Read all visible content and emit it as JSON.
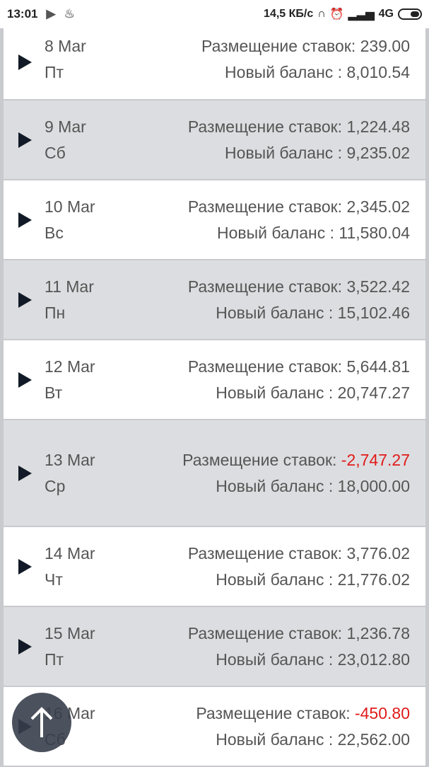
{
  "status_bar": {
    "time": "13:01",
    "speed": "14,5 КБ/с",
    "network": "4G"
  },
  "labels": {
    "bets": "Размещение ставок:",
    "balance": "Новый баланс :"
  },
  "rows": [
    {
      "date": "8 Mar",
      "day": "Пт",
      "bets": "239.00",
      "balance": "8,010.54",
      "negative": false
    },
    {
      "date": "9 Mar",
      "day": "Сб",
      "bets": "1,224.48",
      "balance": "9,235.02",
      "negative": false
    },
    {
      "date": "10 Mar",
      "day": "Вс",
      "bets": "2,345.02",
      "balance": "11,580.04",
      "negative": false
    },
    {
      "date": "11 Mar",
      "day": "Пн",
      "bets": "3,522.42",
      "balance": "15,102.46",
      "negative": false
    },
    {
      "date": "12 Mar",
      "day": "Вт",
      "bets": "5,644.81",
      "balance": "20,747.27",
      "negative": false
    },
    {
      "date": "13 Mar",
      "day": "Ср",
      "bets": "-2,747.27",
      "balance": "18,000.00",
      "negative": true
    },
    {
      "date": "14 Mar",
      "day": "Чт",
      "bets": "3,776.02",
      "balance": "21,776.02",
      "negative": false
    },
    {
      "date": "15 Mar",
      "day": "Пт",
      "bets": "1,236.78",
      "balance": "23,012.80",
      "negative": false
    },
    {
      "date": "16 Mar",
      "day": "Сб",
      "bets": "-450.80",
      "balance": "22,562.00",
      "negative": true
    }
  ],
  "colors": {
    "negative": "#e01b1b",
    "row_alt": "#dcdde0",
    "text": "#555555"
  }
}
